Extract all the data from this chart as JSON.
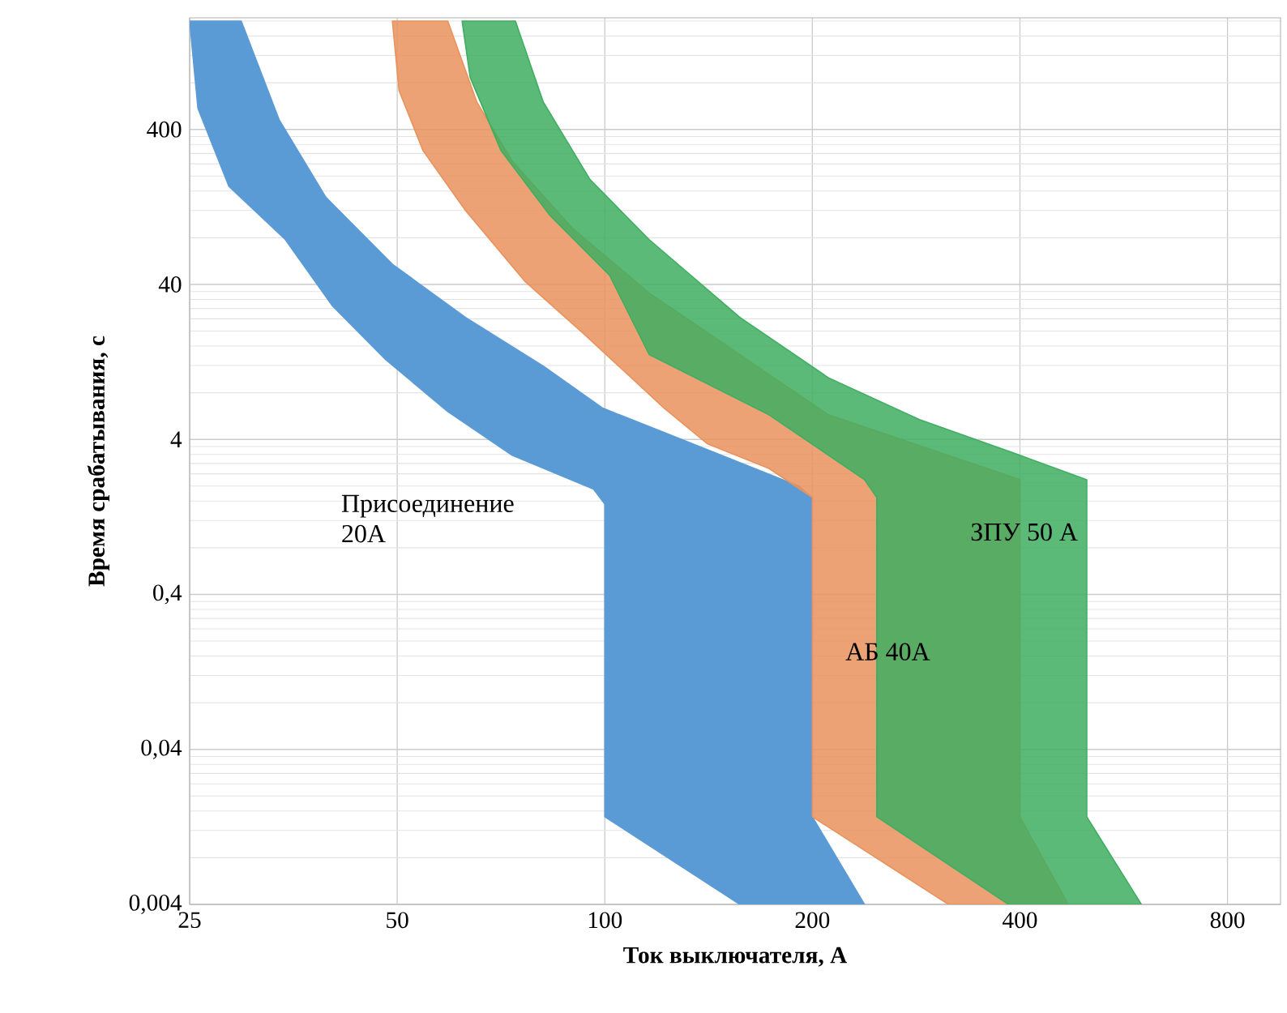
{
  "chart_data": {
    "type": "area",
    "xlabel": "Ток выключателя,  А",
    "ylabel": "Время срабатывания,  с",
    "log": "xy",
    "grid": true,
    "xlim": [
      25,
      955
    ],
    "ylim": [
      0.004,
      2100
    ],
    "xticks": [
      25,
      50,
      100,
      200,
      400,
      800
    ],
    "yticks": [
      {
        "value": 0.004,
        "label": "0,004"
      },
      {
        "value": 0.04,
        "label": "0,04"
      },
      {
        "value": 0.4,
        "label": "0,4"
      },
      4,
      40,
      400
    ],
    "series": [
      {
        "color": "#5b9bd5",
        "x": [
          25,
          29.7,
          33.7,
          39.4,
          49.2,
          62.8,
          81.4,
          99.4,
          122,
          191,
          200,
          200,
          238,
          157,
          100,
          100,
          96.3,
          73.4,
          59.2,
          48.1,
          40.3,
          34.4,
          28.5,
          25.7
        ],
        "values": [
          2000,
          2000,
          463,
          146,
          54,
          24.5,
          11.9,
          6.35,
          4.43,
          2.0,
          1.69,
          0.0147,
          0.004,
          0.004,
          0.0147,
          1.53,
          1.91,
          3.16,
          6.05,
          13.1,
          29,
          78,
          172,
          547
        ]
      },
      {
        "color": "#e9925c",
        "x": [
          49.2,
          50.3,
          54.5,
          62.8,
          76.7,
          93.7,
          122,
          141,
          173,
          200,
          200,
          315,
          470,
          400,
          400,
          211,
          116,
          89.8,
          73.4,
          65.2,
          59.2
        ],
        "values": [
          2000,
          713,
          292,
          120,
          41.6,
          18.8,
          6.35,
          3.74,
          2.6,
          1.69,
          0.0147,
          0.004,
          0.004,
          0.0147,
          2.2,
          5.77,
          35.2,
          92,
          250,
          603,
          2000
        ]
      },
      {
        "color": "#3fae62",
        "x": [
          62.1,
          63.8,
          70.7,
          83.2,
          101.6,
          116,
          141,
          173,
          238,
          248,
          248,
          385,
          600,
          500,
          500,
          400,
          286,
          211,
          157,
          116,
          95.2,
          81.4,
          74.2
        ],
        "values": [
          2000,
          865,
          292,
          112,
          45.8,
          14.1,
          9.12,
          5.77,
          2.2,
          1.69,
          0.0147,
          0.004,
          0.004,
          0.0147,
          2.2,
          3.16,
          5.37,
          10,
          24.5,
          77.8,
          190,
          603,
          2000
        ]
      }
    ],
    "annotations": [
      "Присоединение 20А",
      "АБ 40А",
      "ЗПУ 50 А"
    ]
  }
}
